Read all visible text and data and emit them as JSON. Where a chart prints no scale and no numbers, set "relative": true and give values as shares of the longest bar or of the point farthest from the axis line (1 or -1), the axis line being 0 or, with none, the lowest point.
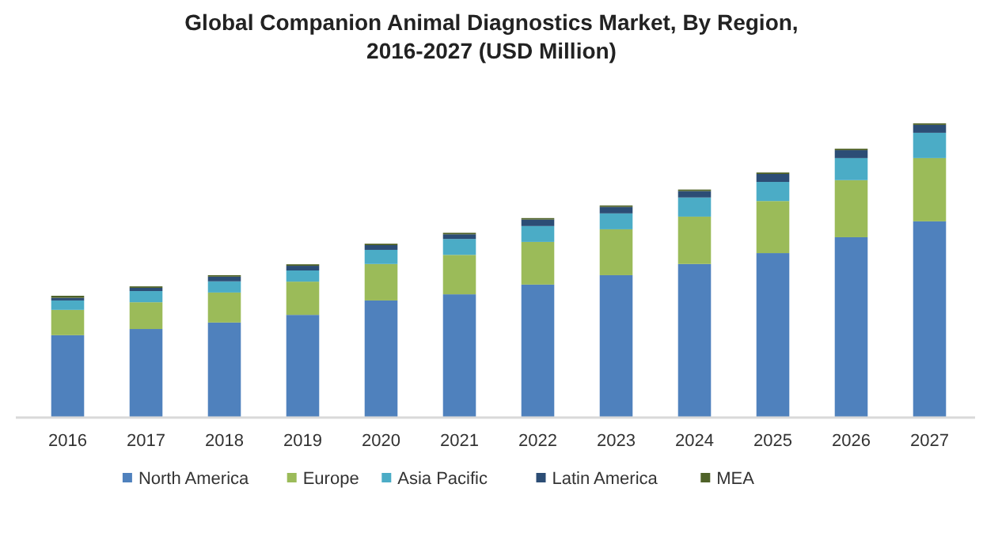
{
  "chart_data": {
    "type": "bar",
    "title": "Global Companion Animal Diagnostics Market, By Region, 2016-2027 (USD Million)",
    "relative": true,
    "stacked": true,
    "legend": "bottom",
    "categories": [
      "2016",
      "2017",
      "2018",
      "2019",
      "2020",
      "2021",
      "2022",
      "2023",
      "2024",
      "2025",
      "2026",
      "2027"
    ],
    "series": [
      {
        "name": "North America",
        "color": "#4f81bd",
        "values": [
          0.28,
          0.301,
          0.323,
          0.349,
          0.398,
          0.419,
          0.452,
          0.484,
          0.522,
          0.559,
          0.613,
          0.667
        ]
      },
      {
        "name": "Europe",
        "color": "#9bbb59",
        "values": [
          0.086,
          0.091,
          0.102,
          0.113,
          0.124,
          0.134,
          0.145,
          0.156,
          0.161,
          0.177,
          0.194,
          0.215
        ]
      },
      {
        "name": "Asia Pacific",
        "color": "#4bacc6",
        "values": [
          0.032,
          0.038,
          0.038,
          0.038,
          0.048,
          0.054,
          0.054,
          0.054,
          0.065,
          0.065,
          0.075,
          0.086
        ]
      },
      {
        "name": "Latin America",
        "color": "#2c4d75",
        "values": [
          0.009,
          0.011,
          0.016,
          0.016,
          0.016,
          0.016,
          0.022,
          0.022,
          0.022,
          0.027,
          0.027,
          0.027
        ]
      },
      {
        "name": "MEA",
        "color": "#4f6228",
        "values": [
          0.007,
          0.005,
          0.005,
          0.005,
          0.005,
          0.005,
          0.005,
          0.005,
          0.005,
          0.005,
          0.005,
          0.005
        ]
      }
    ]
  }
}
